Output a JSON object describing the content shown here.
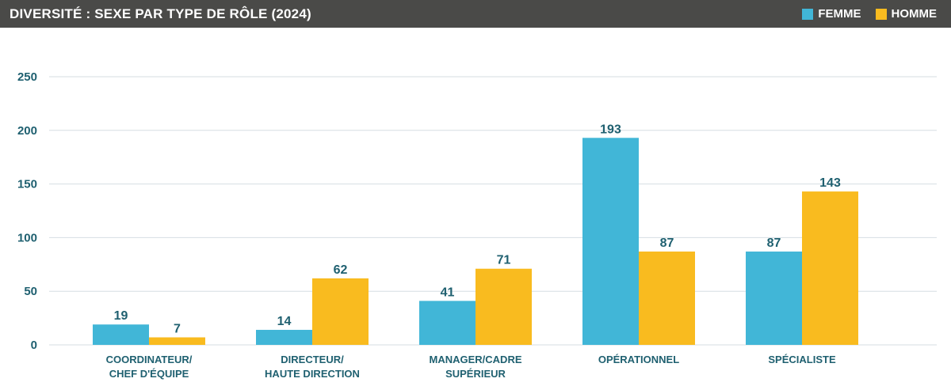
{
  "header": {
    "title": "DIVERSITÉ : SEXE PAR TYPE DE RÔLE (2024)"
  },
  "colors": {
    "header_bg": "#4a4a48",
    "femme": "#41b6d7",
    "homme": "#f9bb1f",
    "text": "#1f6070",
    "grid": "#d6dee2"
  },
  "chart_data": {
    "type": "bar",
    "title": "DIVERSITÉ : SEXE PAR TYPE DE RÔLE (2024)",
    "xlabel": "",
    "ylabel": "",
    "ylim": [
      0,
      250
    ],
    "yticks": [
      0,
      50,
      100,
      150,
      200,
      250
    ],
    "grid": true,
    "legend_position": "top-right",
    "categories": [
      [
        "COORDINATEUR/",
        "CHEF D'ÉQUIPE"
      ],
      [
        "DIRECTEUR/",
        "HAUTE DIRECTION"
      ],
      [
        "MANAGER/CADRE",
        "SUPÉRIEUR"
      ],
      [
        "OPÉRATIONNEL"
      ],
      [
        "SPÉCIALISTE"
      ]
    ],
    "series": [
      {
        "name": "FEMME",
        "color": "#41b6d7",
        "values": [
          19,
          14,
          41,
          193,
          87
        ]
      },
      {
        "name": "HOMME",
        "color": "#f9bb1f",
        "values": [
          7,
          62,
          71,
          87,
          143
        ]
      }
    ]
  }
}
